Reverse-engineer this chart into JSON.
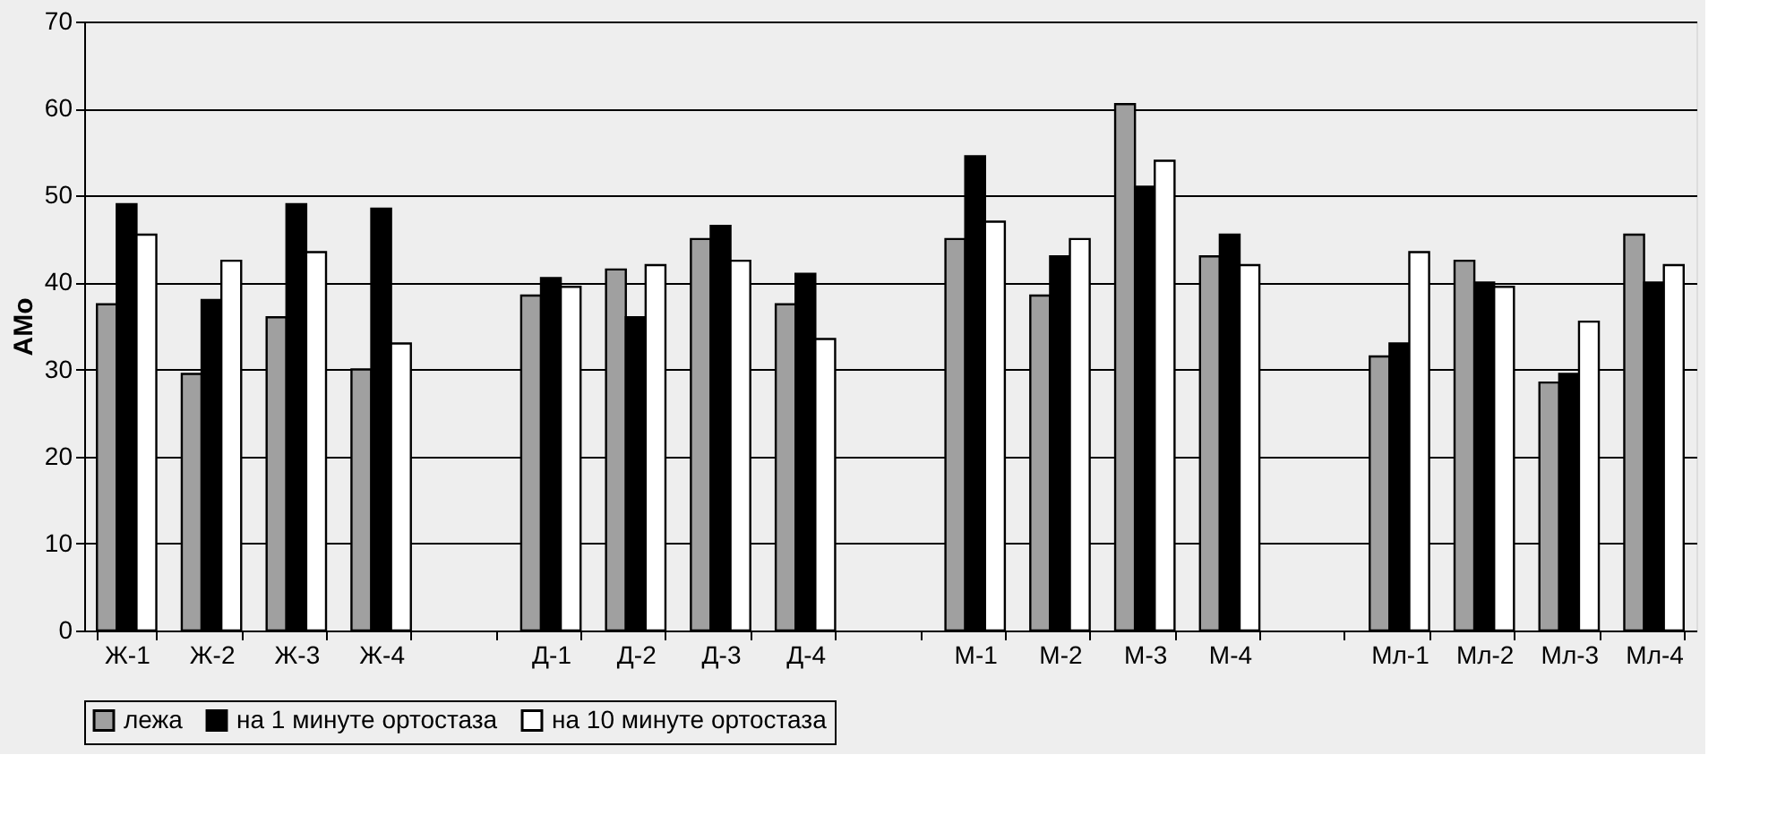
{
  "chart_data": {
    "type": "bar",
    "ylabel": "АМо",
    "categories": [
      "Ж-1",
      "Ж-2",
      "Ж-3",
      "Ж-4",
      null,
      "Д-1",
      "Д-2",
      "Д-3",
      "Д-4",
      null,
      "М-1",
      "М-2",
      "М-3",
      "М-4",
      null,
      "Мл-1",
      "Мл-2",
      "Мл-3",
      "Мл-4"
    ],
    "series": [
      {
        "name": "лежа",
        "color": "#a0a0a0",
        "values": [
          37.5,
          29.5,
          36,
          30,
          null,
          38.5,
          41.5,
          45,
          37.5,
          null,
          45,
          38.5,
          60.5,
          43,
          null,
          31.5,
          42.5,
          28.5,
          45.5
        ]
      },
      {
        "name": "на 1 минуте ортостаза",
        "color": "#000000",
        "values": [
          49,
          38,
          49,
          48.5,
          null,
          40.5,
          36,
          46.5,
          41,
          null,
          54.5,
          43,
          51,
          45.5,
          null,
          33,
          40,
          29.5,
          40
        ]
      },
      {
        "name": "на 10 минуте ортостаза",
        "color": "#ffffff",
        "values": [
          45.5,
          42.5,
          43.5,
          33,
          null,
          39.5,
          42,
          42.5,
          33.5,
          null,
          47,
          45,
          54,
          42,
          null,
          43.5,
          39.5,
          35.5,
          42
        ]
      }
    ],
    "ylim": [
      0,
      70
    ],
    "yticks": [
      0,
      10,
      20,
      30,
      40,
      50,
      60,
      70
    ],
    "grid": "y",
    "legend": "bottom"
  }
}
